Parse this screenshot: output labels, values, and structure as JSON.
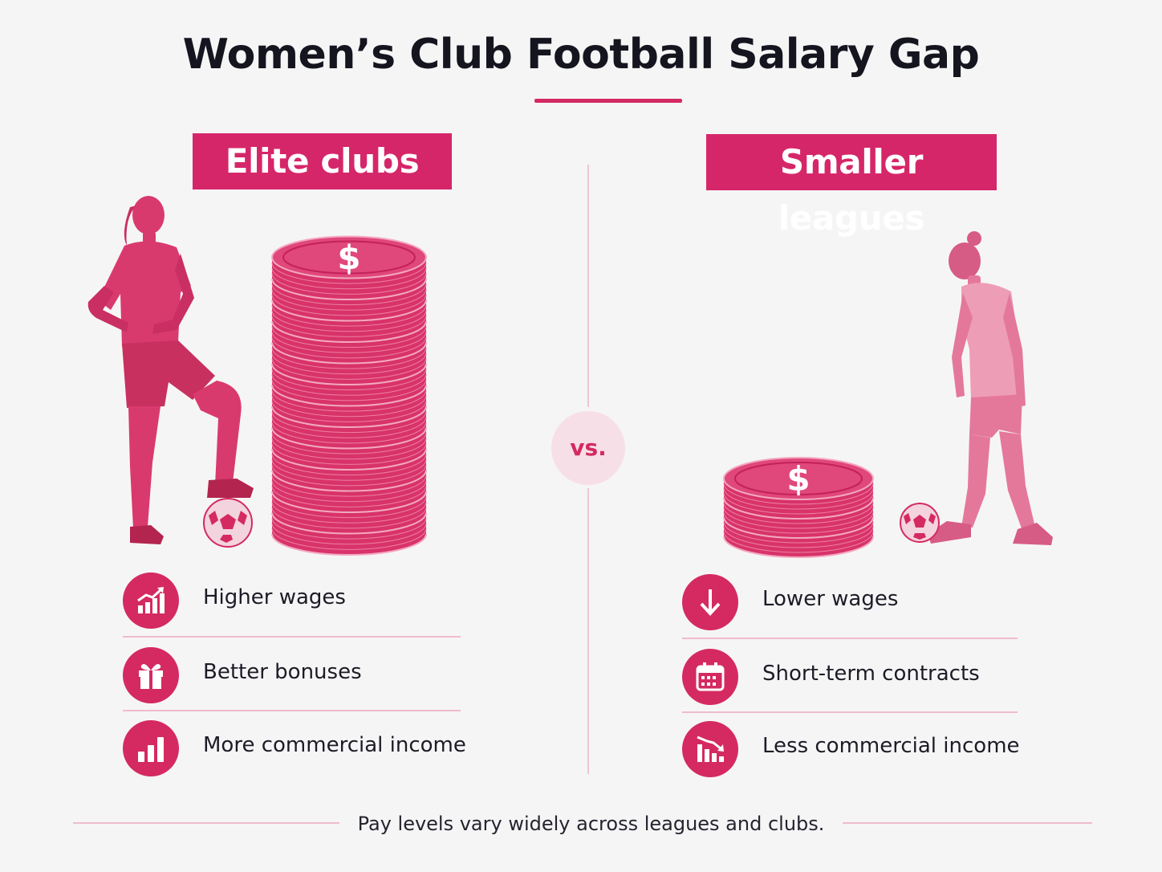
{
  "title": "Women’s Club Football Salary Gap",
  "vs_label": "vs.",
  "colors": {
    "accent": "#d42a61",
    "header_bg": "#d6266a",
    "divider": "#efbccb",
    "vs_bg": "#f7dfe7"
  },
  "left": {
    "header": "Elite clubs",
    "coin_stack_count": 13,
    "features": [
      {
        "icon": "rising-chart-icon",
        "label": "Higher wages"
      },
      {
        "icon": "gift-icon",
        "label": "Better bonuses"
      },
      {
        "icon": "bar-chart-icon",
        "label": "More commercial income"
      }
    ]
  },
  "right": {
    "header": "Smaller leagues",
    "coin_stack_count": 3,
    "features": [
      {
        "icon": "arrow-down-icon",
        "label": "Lower wages"
      },
      {
        "icon": "calendar-icon",
        "label": "Short-term contracts"
      },
      {
        "icon": "declining-chart-icon",
        "label": "Less commercial income"
      }
    ]
  },
  "footnote": "Pay levels vary widely across leagues and clubs."
}
